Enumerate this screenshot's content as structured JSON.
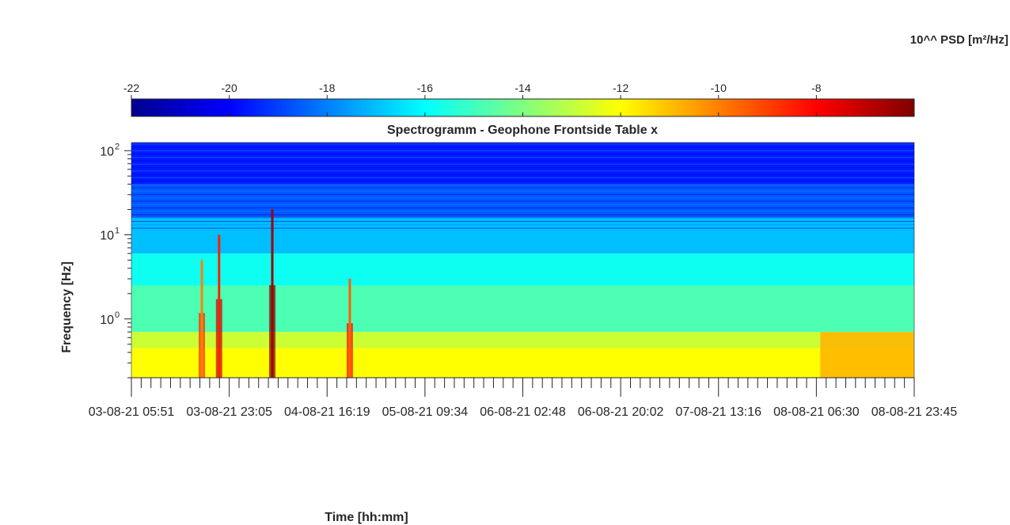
{
  "chart_data": {
    "type": "heatmap",
    "title": "Spectrogramm - Geophone Frontside Table x",
    "xlabel": "Time [hh:mm]",
    "ylabel": "Frequency [Hz]",
    "colorbar_label": "10^^ PSD [m²/Hz]",
    "colorbar_ticks": [
      -22,
      -20,
      -18,
      -16,
      -14,
      -12,
      -10,
      -8
    ],
    "colorbar_range": [
      -22,
      -6
    ],
    "colormap": "jet",
    "x_tick_labels": [
      "03-08-21  05:51",
      "03-08-21  23:05",
      "04-08-21  16:19",
      "05-08-21  09:34",
      "06-08-21  02:48",
      "06-08-21  20:02",
      "07-08-21  13:16",
      "08-08-21  06:30",
      "08-08-21  23:45"
    ],
    "y_scale": "log",
    "y_ticks": [
      {
        "value": 1,
        "label": "10",
        "exp": "0"
      },
      {
        "value": 10,
        "label": "10",
        "exp": "1"
      },
      {
        "value": 100,
        "label": "10",
        "exp": "2"
      }
    ],
    "y_range": [
      0.2,
      125
    ],
    "bands": [
      {
        "f_min": 0.2,
        "f_max": 0.45,
        "log_psd": -12.0
      },
      {
        "f_min": 0.45,
        "f_max": 0.7,
        "log_psd": -12.8
      },
      {
        "f_min": 0.7,
        "f_max": 2.5,
        "log_psd": -14.8
      },
      {
        "f_min": 2.5,
        "f_max": 6,
        "log_psd": -15.8
      },
      {
        "f_min": 6,
        "f_max": 16,
        "log_psd": -17.0
      },
      {
        "f_min": 16,
        "f_max": 40,
        "log_psd": -18.6
      },
      {
        "f_min": 40,
        "f_max": 125,
        "log_psd": -19.6
      }
    ],
    "events": [
      {
        "x_fraction": 0.09,
        "f_max": 5,
        "peak_log_psd": -10.0
      },
      {
        "x_fraction": 0.112,
        "f_max": 10,
        "peak_log_psd": -8.5
      },
      {
        "x_fraction": 0.18,
        "f_max": 20,
        "peak_log_psd": -6.5
      },
      {
        "x_fraction": 0.279,
        "f_max": 3,
        "peak_log_psd": -9.5
      }
    ],
    "late_warm_region": {
      "x_start_fraction": 0.88,
      "x_end_fraction": 1.0,
      "f_min": 0.2,
      "f_max": 0.7,
      "log_psd": -10.8
    }
  }
}
